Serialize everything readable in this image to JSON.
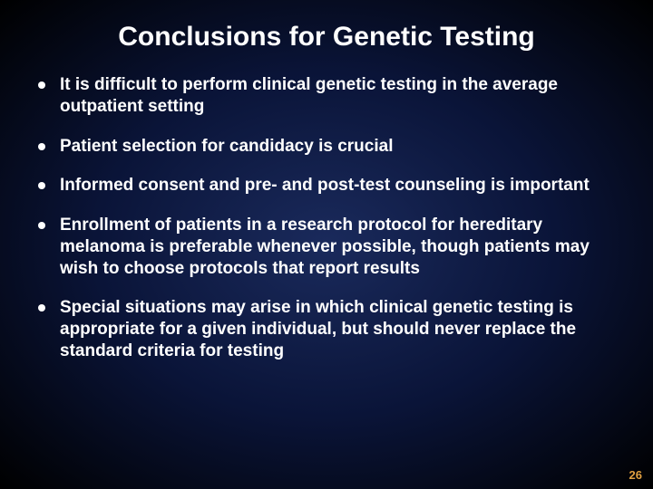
{
  "slide": {
    "title": "Conclusions for Genetic Testing",
    "bullets": [
      "It is difficult to perform clinical genetic testing in the average outpatient setting",
      "Patient selection for candidacy is crucial",
      "Informed consent and pre- and post-test counseling is important",
      "Enrollment of patients in a research protocol for hereditary melanoma is preferable whenever possible, though patients may wish to choose protocols that report results",
      "Special situations may arise in which clinical genetic testing is appropriate for a given individual, but should never replace the standard criteria for testing"
    ],
    "page_number": "26"
  },
  "style": {
    "background_gradient_center": "#1a2a5c",
    "background_gradient_mid": "#0a1438",
    "background_gradient_edge": "#000000",
    "text_color": "#ffffff",
    "page_number_color": "#e0a040",
    "title_fontsize": 30,
    "body_fontsize": 19,
    "font_weight": "bold"
  }
}
